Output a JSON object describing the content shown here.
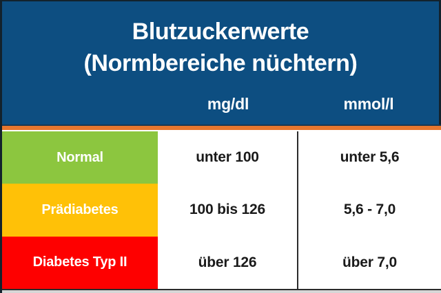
{
  "header": {
    "title_line1": "Blutzuckerwerte",
    "title_line2": "(Normbereiche nüchtern)"
  },
  "table": {
    "columns": [
      "mg/dl",
      "mmol/l"
    ],
    "rows": [
      {
        "label": "Normal",
        "mgdl": "unter 100",
        "mmoll": "unter 5,6",
        "color": "#8cc63f"
      },
      {
        "label": "Prädiabetes",
        "mgdl": "100 bis 126",
        "mmoll": "5,6 - 7,0",
        "color": "#ffc107"
      },
      {
        "label": "Diabetes Typ II",
        "mgdl": "über 126",
        "mmoll": "über 7,0",
        "color": "#fe0000"
      }
    ]
  },
  "colors": {
    "header_bg": "#0d4e81",
    "accent_line": "#e8772e",
    "normal_green": "#8cc63f",
    "praediabetes_amber": "#ffc107",
    "diabetes_red": "#fe0000",
    "divider_dark": "#2a2a2a",
    "title_text": "#ffffff",
    "value_text": "#1a1a1a"
  }
}
